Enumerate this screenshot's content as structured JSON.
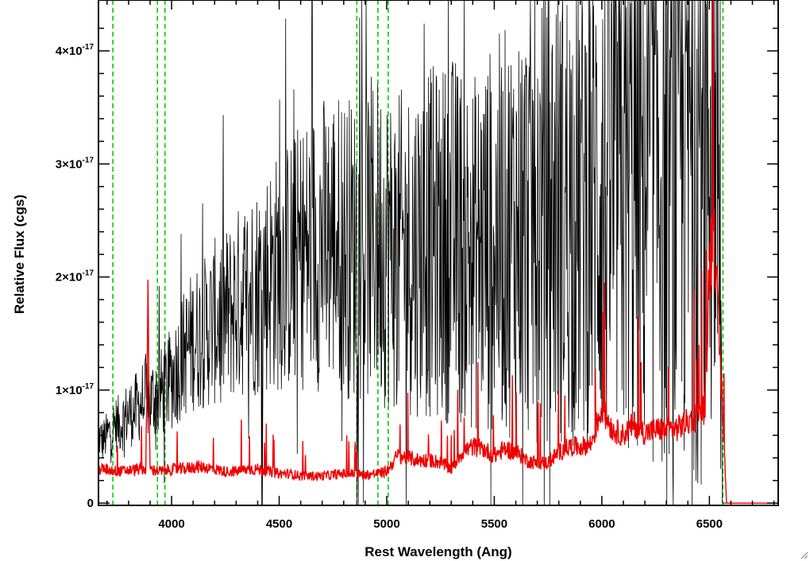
{
  "chart_data": {
    "type": "line",
    "xlabel": "Rest Wavelength (Ang)",
    "ylabel": "Relative Flux (cgs)",
    "xlim": [
      3660,
      6820
    ],
    "ylim": [
      -2e-19,
      4.45e-17
    ],
    "x_ticks": [
      {
        "value": 4000,
        "label": "4000"
      },
      {
        "value": 4500,
        "label": "4500"
      },
      {
        "value": 5000,
        "label": "5000"
      },
      {
        "value": 5500,
        "label": "5500"
      },
      {
        "value": 6000,
        "label": "6000"
      },
      {
        "value": 6500,
        "label": "6500"
      }
    ],
    "y_ticks": [
      {
        "value": 0,
        "mant": "0",
        "exp": ""
      },
      {
        "value": 1e-17,
        "mant": "1×10",
        "exp": "-17"
      },
      {
        "value": 2e-17,
        "mant": "2×10",
        "exp": "-17"
      },
      {
        "value": 3e-17,
        "mant": "3×10",
        "exp": "-17"
      },
      {
        "value": 4e-17,
        "mant": "4×10",
        "exp": "-17"
      }
    ],
    "grid": false,
    "reference_lines": {
      "color": "#00cc00",
      "style": "dashed",
      "x": [
        3727,
        3934,
        3969,
        4861,
        4959,
        5007,
        6563
      ]
    },
    "series": [
      {
        "color": "#000000",
        "description": "observed spectrum",
        "x": [
          3660,
          3680,
          3700,
          3720,
          3740,
          3760,
          3780,
          3800,
          3820,
          3840,
          3860,
          3880,
          3900,
          3920,
          3940,
          3960,
          3980,
          4000,
          4050,
          4100,
          4150,
          4200,
          4250,
          4300,
          4350,
          4400,
          4450,
          4500,
          4550,
          4600,
          4650,
          4700,
          4750,
          4800,
          4850,
          4900,
          4950,
          5000,
          5050,
          5100,
          5150,
          5200,
          5250,
          5300,
          5350,
          5400,
          5450,
          5500,
          5550,
          5600,
          5650,
          5700,
          5750,
          5800,
          5850,
          5900,
          5950,
          6000,
          6050,
          6100,
          6150,
          6200,
          6250,
          6300,
          6350,
          6400,
          6450,
          6500,
          6520,
          6540,
          6560,
          6580,
          6600,
          6650,
          6700,
          6750,
          6800
        ],
        "y": [
          6e-18,
          5.5e-18,
          6e-18,
          6.5e-18,
          7e-18,
          7e-18,
          7.5e-18,
          8e-18,
          8e-18,
          8.5e-18,
          9e-18,
          9.5e-18,
          9e-18,
          9.5e-18,
          9.5e-18,
          1e-17,
          1.05e-17,
          1.1e-17,
          1.3e-17,
          1.45e-17,
          1.5e-17,
          1.6e-17,
          1.65e-17,
          1.75e-17,
          1.85e-17,
          1.9e-17,
          2e-17,
          2.05e-17,
          2.1e-17,
          2.2e-17,
          2.25e-17,
          2.3e-17,
          2.35e-17,
          2.3e-17,
          2.25e-17,
          2.3e-17,
          2.35e-17,
          2.3e-17,
          2.2e-17,
          2.25e-17,
          2.3e-17,
          2.3e-17,
          2.3e-17,
          2.35e-17,
          2.3e-17,
          2.2e-17,
          2.3e-17,
          2.35e-17,
          2.4e-17,
          2.45e-17,
          2.5e-17,
          2.55e-17,
          2.6e-17,
          2.6e-17,
          2.65e-17,
          2.7e-17,
          2.7e-17,
          2.75e-17,
          2.8e-17,
          2.8e-17,
          2.9e-17,
          2.95e-17,
          3e-17,
          3e-17,
          3.1e-17,
          3.2e-17,
          3.3e-17,
          3.5e-17,
          3.6e-17,
          3.8e-17,
          0,
          0,
          0,
          0,
          0,
          0,
          0
        ]
      },
      {
        "color": "#ee0000",
        "description": "error spectrum",
        "x": [
          3660,
          3700,
          3750,
          3800,
          3850,
          3880,
          3890,
          3900,
          3950,
          4000,
          4050,
          4100,
          4150,
          4200,
          4250,
          4300,
          4350,
          4400,
          4450,
          4500,
          4550,
          4600,
          4650,
          4700,
          4750,
          4800,
          4850,
          4900,
          4950,
          5000,
          5050,
          5100,
          5150,
          5200,
          5250,
          5300,
          5350,
          5400,
          5450,
          5500,
          5550,
          5600,
          5650,
          5700,
          5750,
          5800,
          5850,
          5900,
          5950,
          6000,
          6050,
          6100,
          6150,
          6200,
          6250,
          6300,
          6350,
          6400,
          6450,
          6480,
          6500,
          6520,
          6540,
          6560,
          6580,
          6650,
          6750,
          6800
        ],
        "y": [
          3e-18,
          3e-18,
          2.8e-18,
          2.9e-18,
          3e-18,
          3e-18,
          1.7e-17,
          3e-18,
          2.8e-18,
          3e-18,
          3e-18,
          3.2e-18,
          3.2e-18,
          3e-18,
          2.8e-18,
          2.8e-18,
          3e-18,
          3e-18,
          2.8e-18,
          2.6e-18,
          2.6e-18,
          2.4e-18,
          2.4e-18,
          2.4e-18,
          2.5e-18,
          2.6e-18,
          2.6e-18,
          2.5e-18,
          2.6e-18,
          2.8e-18,
          4.2e-18,
          4e-18,
          3.8e-18,
          3.8e-18,
          3.6e-18,
          3e-18,
          4.5e-18,
          5e-18,
          4.8e-18,
          4.2e-18,
          4.8e-18,
          4.5e-18,
          3.8e-18,
          3.5e-18,
          3.6e-18,
          4.5e-18,
          5e-18,
          5e-18,
          5.2e-18,
          8.5e-18,
          6.5e-18,
          6e-18,
          7e-18,
          6.2e-18,
          6.5e-18,
          6.5e-18,
          6.6e-18,
          7.2e-18,
          7.8e-18,
          8.5e-18,
          2.1e-17,
          2.6e-17,
          1.6e-17,
          9e-18,
          0,
          0,
          0,
          0
        ]
      }
    ]
  }
}
